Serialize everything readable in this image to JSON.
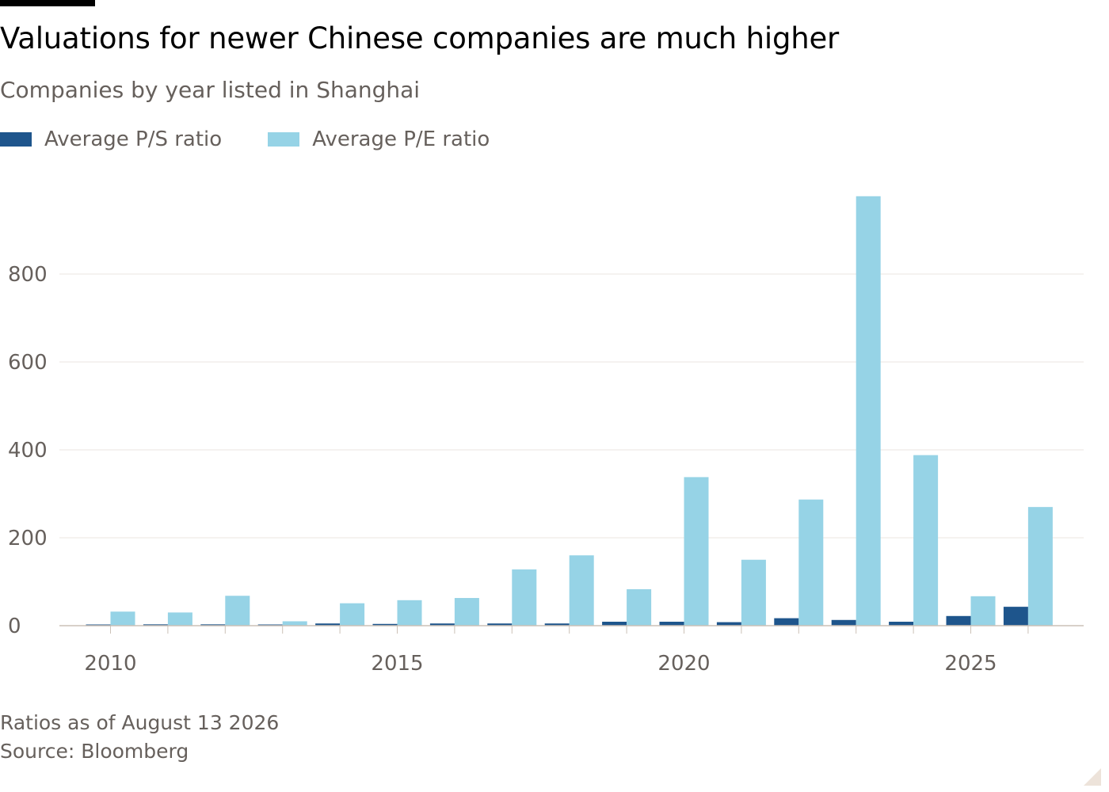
{
  "header": {
    "title": "Valuations for newer Chinese companies are much higher",
    "subtitle": "Companies by year listed in Shanghai"
  },
  "footer": {
    "note": "Ratios as of August 13 2026",
    "source": "Source: Bloomberg"
  },
  "colors": {
    "ps": "#1e558c",
    "pe": "#96d3e6",
    "grid": "#ebe6e2",
    "axis": "#ccc1b7"
  },
  "chart_data": {
    "type": "bar",
    "x": [
      2010,
      2011,
      2012,
      2013,
      2014,
      2015,
      2016,
      2017,
      2018,
      2019,
      2020,
      2021,
      2022,
      2023,
      2024,
      2025,
      2026
    ],
    "series": [
      {
        "name": "Average P/S ratio",
        "color": "#1e558c",
        "values": [
          2,
          3,
          3,
          1,
          5,
          4,
          5,
          5,
          5,
          9,
          9,
          8,
          17,
          13,
          9,
          22,
          43
        ]
      },
      {
        "name": "Average P/E ratio",
        "color": "#96d3e6",
        "values": [
          32,
          30,
          68,
          10,
          51,
          58,
          63,
          128,
          160,
          83,
          338,
          150,
          287,
          977,
          388,
          67,
          270
        ]
      }
    ],
    "ylim": [
      0,
      980
    ],
    "yticks": [
      0,
      200,
      400,
      600,
      800
    ],
    "xticks": [
      2010,
      2015,
      2020,
      2025
    ],
    "legend": "top-left",
    "grid": "horizontal"
  }
}
